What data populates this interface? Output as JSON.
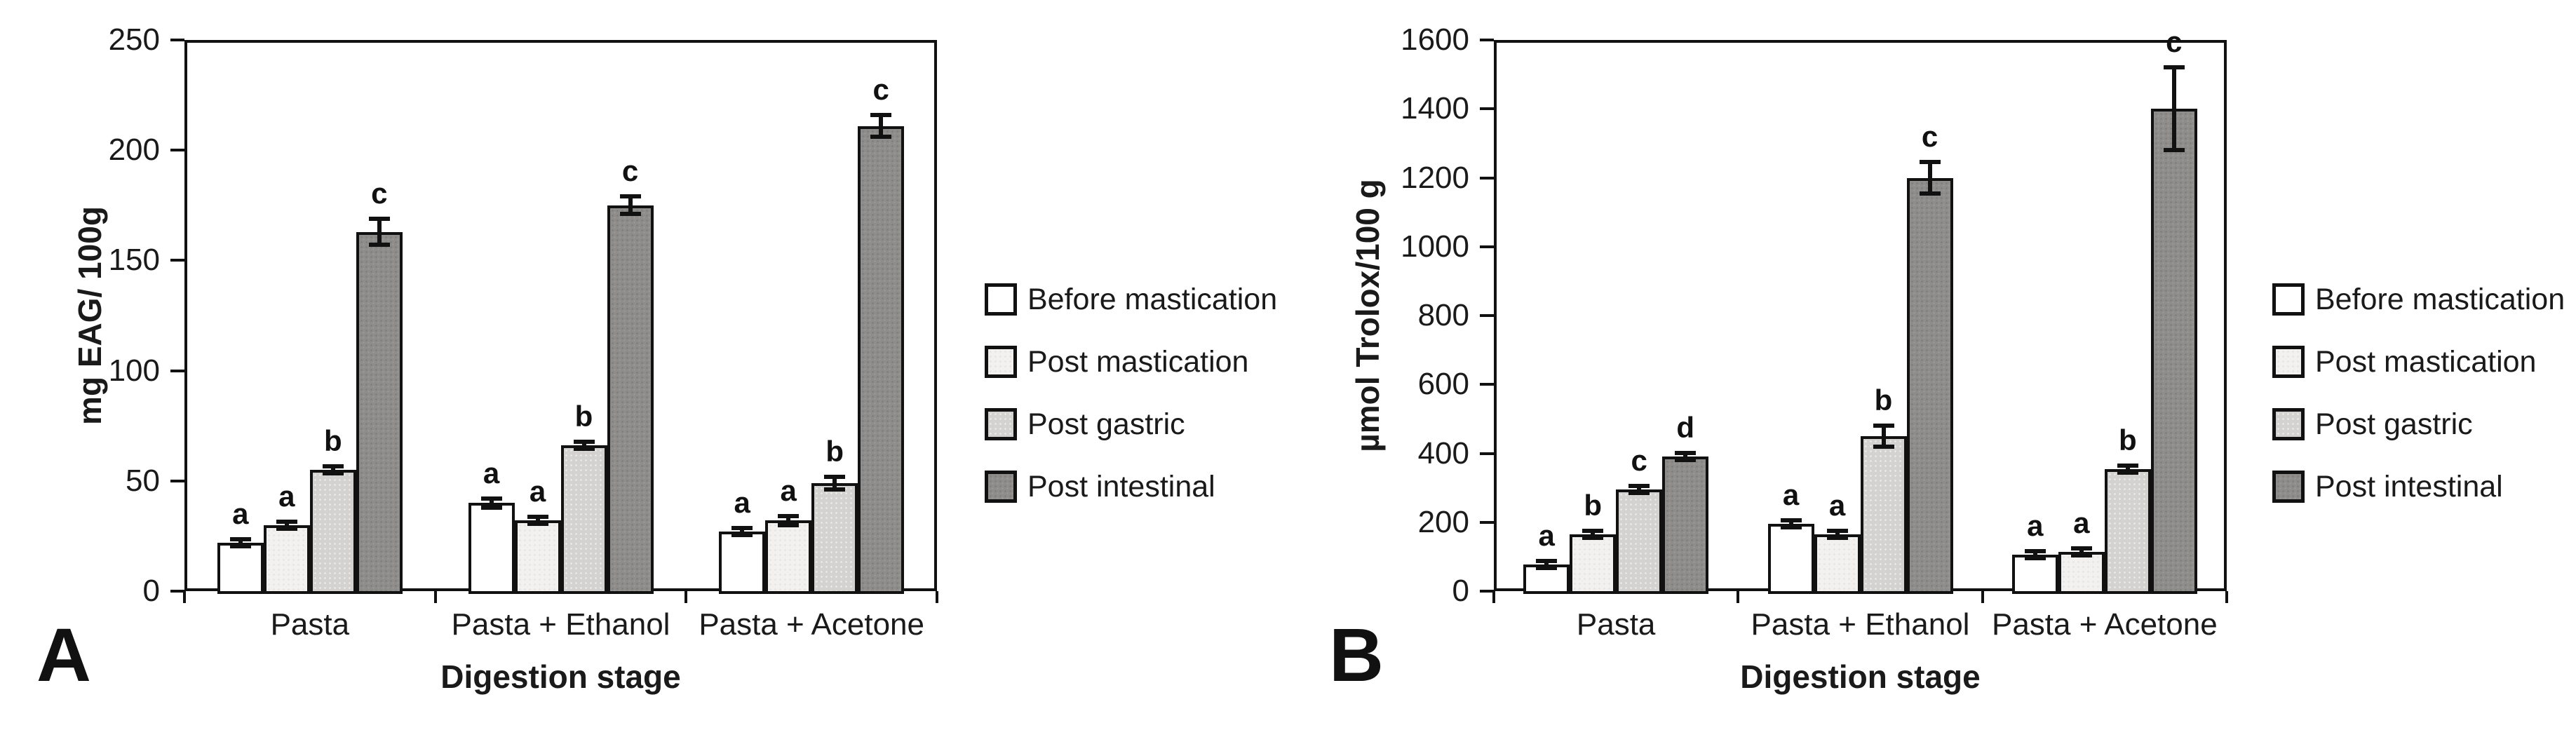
{
  "figure_type": "two-panel grouped bar chart with significance letters and error bars",
  "legend": {
    "entries": [
      "Before mastication",
      "Post mastication",
      "Post gastric",
      "Post intestinal"
    ],
    "position": "right of each panel"
  },
  "colors": {
    "before_mastication_fill": "#ffffff",
    "post_mastication_fill": "#f2f1ef",
    "post_gastric_fill": "#d3d2d0",
    "post_intestinal_fill": "#8e8d8b",
    "outline": "#111111"
  },
  "chart_data": [
    {
      "type": "bar",
      "panel_label": "A",
      "title": "",
      "xlabel": "Digestion stage",
      "ylabel": "mg EAG/ 100g",
      "ylim": [
        0,
        250
      ],
      "yticks": [
        0,
        50,
        100,
        150,
        200,
        250
      ],
      "grid": false,
      "legend_position": "right",
      "categories": [
        "Pasta",
        "Pasta + Ethanol",
        "Pasta + Acetone"
      ],
      "series": [
        {
          "name": "Before mastication",
          "fill": "#ffffff",
          "values": [
            22,
            40,
            27
          ],
          "errors": [
            1.5,
            2,
            1.5
          ],
          "letters": [
            "a",
            "a",
            "a"
          ]
        },
        {
          "name": "Post mastication",
          "fill": "#f2f1ef",
          "values": [
            30,
            32,
            32
          ],
          "errors": [
            1.5,
            1.5,
            2
          ],
          "letters": [
            "a",
            "a",
            "a"
          ]
        },
        {
          "name": "Post gastric",
          "fill": "#d3d2d0",
          "values": [
            55,
            66,
            49
          ],
          "errors": [
            1.5,
            1.5,
            3
          ],
          "letters": [
            "b",
            "b",
            "b"
          ]
        },
        {
          "name": "Post intestinal",
          "fill": "#8e8d8b",
          "values": [
            163,
            175,
            211
          ],
          "errors": [
            6,
            4,
            5
          ],
          "letters": [
            "c",
            "c",
            "c"
          ]
        }
      ]
    },
    {
      "type": "bar",
      "panel_label": "B",
      "title": "",
      "xlabel": "Digestion stage",
      "ylabel": "µmol Trolox/100 g",
      "ylim": [
        0,
        1600
      ],
      "yticks": [
        0,
        200,
        400,
        600,
        800,
        1000,
        1200,
        1400,
        1600
      ],
      "grid": false,
      "legend_position": "right",
      "categories": [
        "Pasta",
        "Pasta + Ethanol",
        "Pasta + Acetone"
      ],
      "series": [
        {
          "name": "Before mastication",
          "fill": "#ffffff",
          "values": [
            78,
            195,
            105
          ],
          "errors": [
            8,
            10,
            6
          ],
          "letters": [
            "a",
            "a",
            "a"
          ]
        },
        {
          "name": "Post mastication",
          "fill": "#f2f1ef",
          "values": [
            165,
            165,
            115
          ],
          "errors": [
            8,
            8,
            6
          ],
          "letters": [
            "b",
            "a",
            "a"
          ]
        },
        {
          "name": "Post gastric",
          "fill": "#d3d2d0",
          "values": [
            295,
            450,
            355
          ],
          "errors": [
            8,
            30,
            10
          ],
          "letters": [
            "c",
            "b",
            "b"
          ]
        },
        {
          "name": "Post intestinal",
          "fill": "#8e8d8b",
          "values": [
            390,
            1200,
            1400
          ],
          "errors": [
            10,
            45,
            120
          ],
          "letters": [
            "d",
            "c",
            "c"
          ]
        }
      ]
    }
  ]
}
